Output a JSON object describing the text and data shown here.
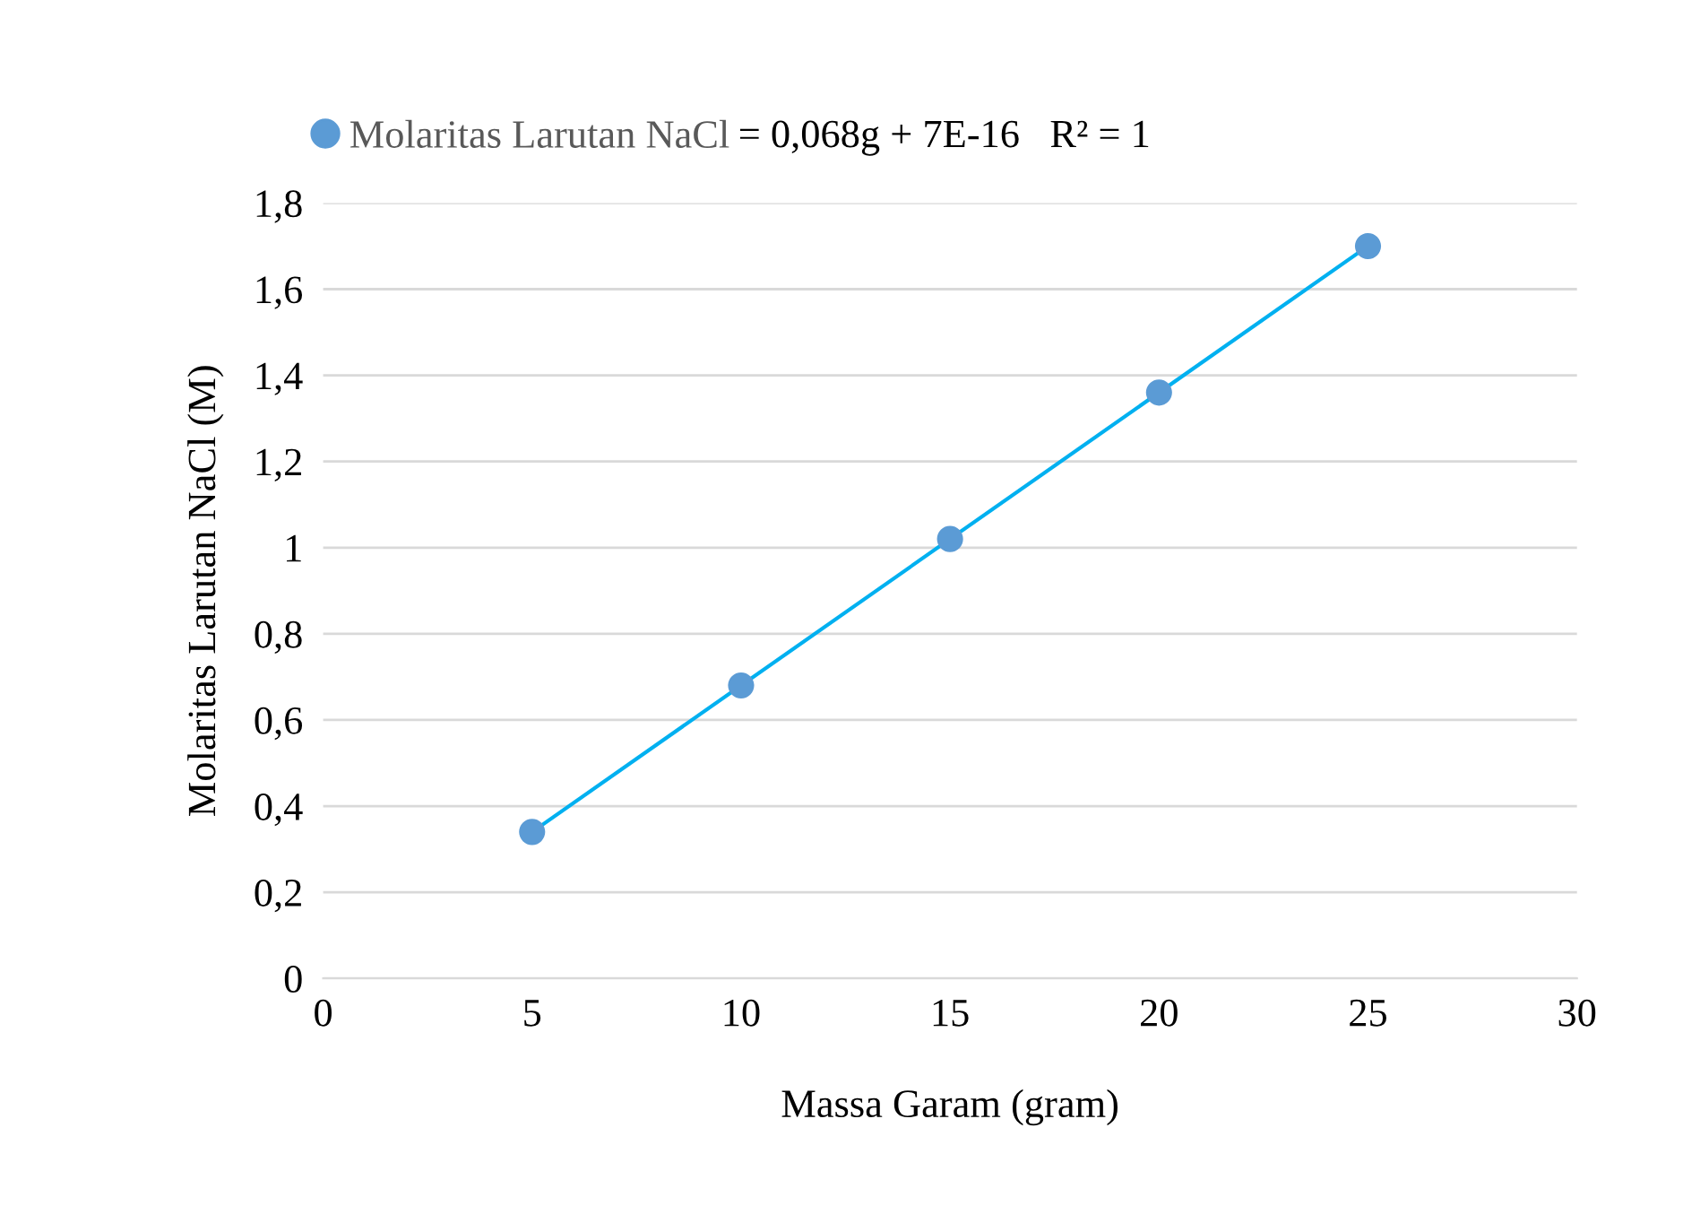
{
  "chart_data": {
    "type": "scatter",
    "xlabel": "Massa Garam (gram)",
    "ylabel": "Molaritas Larutan NaCl (M)",
    "series": [
      {
        "name": "Molaritas Larutan NaCl",
        "color": "#5b9bd5",
        "x": [
          5,
          10,
          15,
          20,
          25
        ],
        "values": [
          0.34,
          0.68,
          1.02,
          1.36,
          1.7
        ],
        "marker": "circle"
      },
      {
        "type": "line",
        "color": "#00b0f0",
        "x": [
          5,
          25
        ],
        "values": [
          0.34,
          1.7
        ],
        "marker": "none",
        "line_style": "solid"
      }
    ],
    "annotations": [
      "= 0,068g + 7E-16   R² = 1"
    ],
    "xlim": [
      0,
      30
    ],
    "xticks": [
      0,
      5,
      10,
      15,
      20,
      25,
      30
    ],
    "ylim": [
      0,
      1.8
    ],
    "yticks": [
      0,
      {
        "value": 0.2,
        "label": "0,2"
      },
      {
        "value": 0.4,
        "label": "0,4"
      },
      {
        "value": 0.6,
        "label": "0,6"
      },
      {
        "value": 0.8,
        "label": "0,8"
      },
      1,
      {
        "value": 1.2,
        "label": "1,2"
      },
      {
        "value": 1.4,
        "label": "1,4"
      },
      {
        "value": 1.6,
        "label": "1,6"
      },
      {
        "value": 1.8,
        "label": "1,8"
      }
    ],
    "grid": "y",
    "legend": "top"
  }
}
